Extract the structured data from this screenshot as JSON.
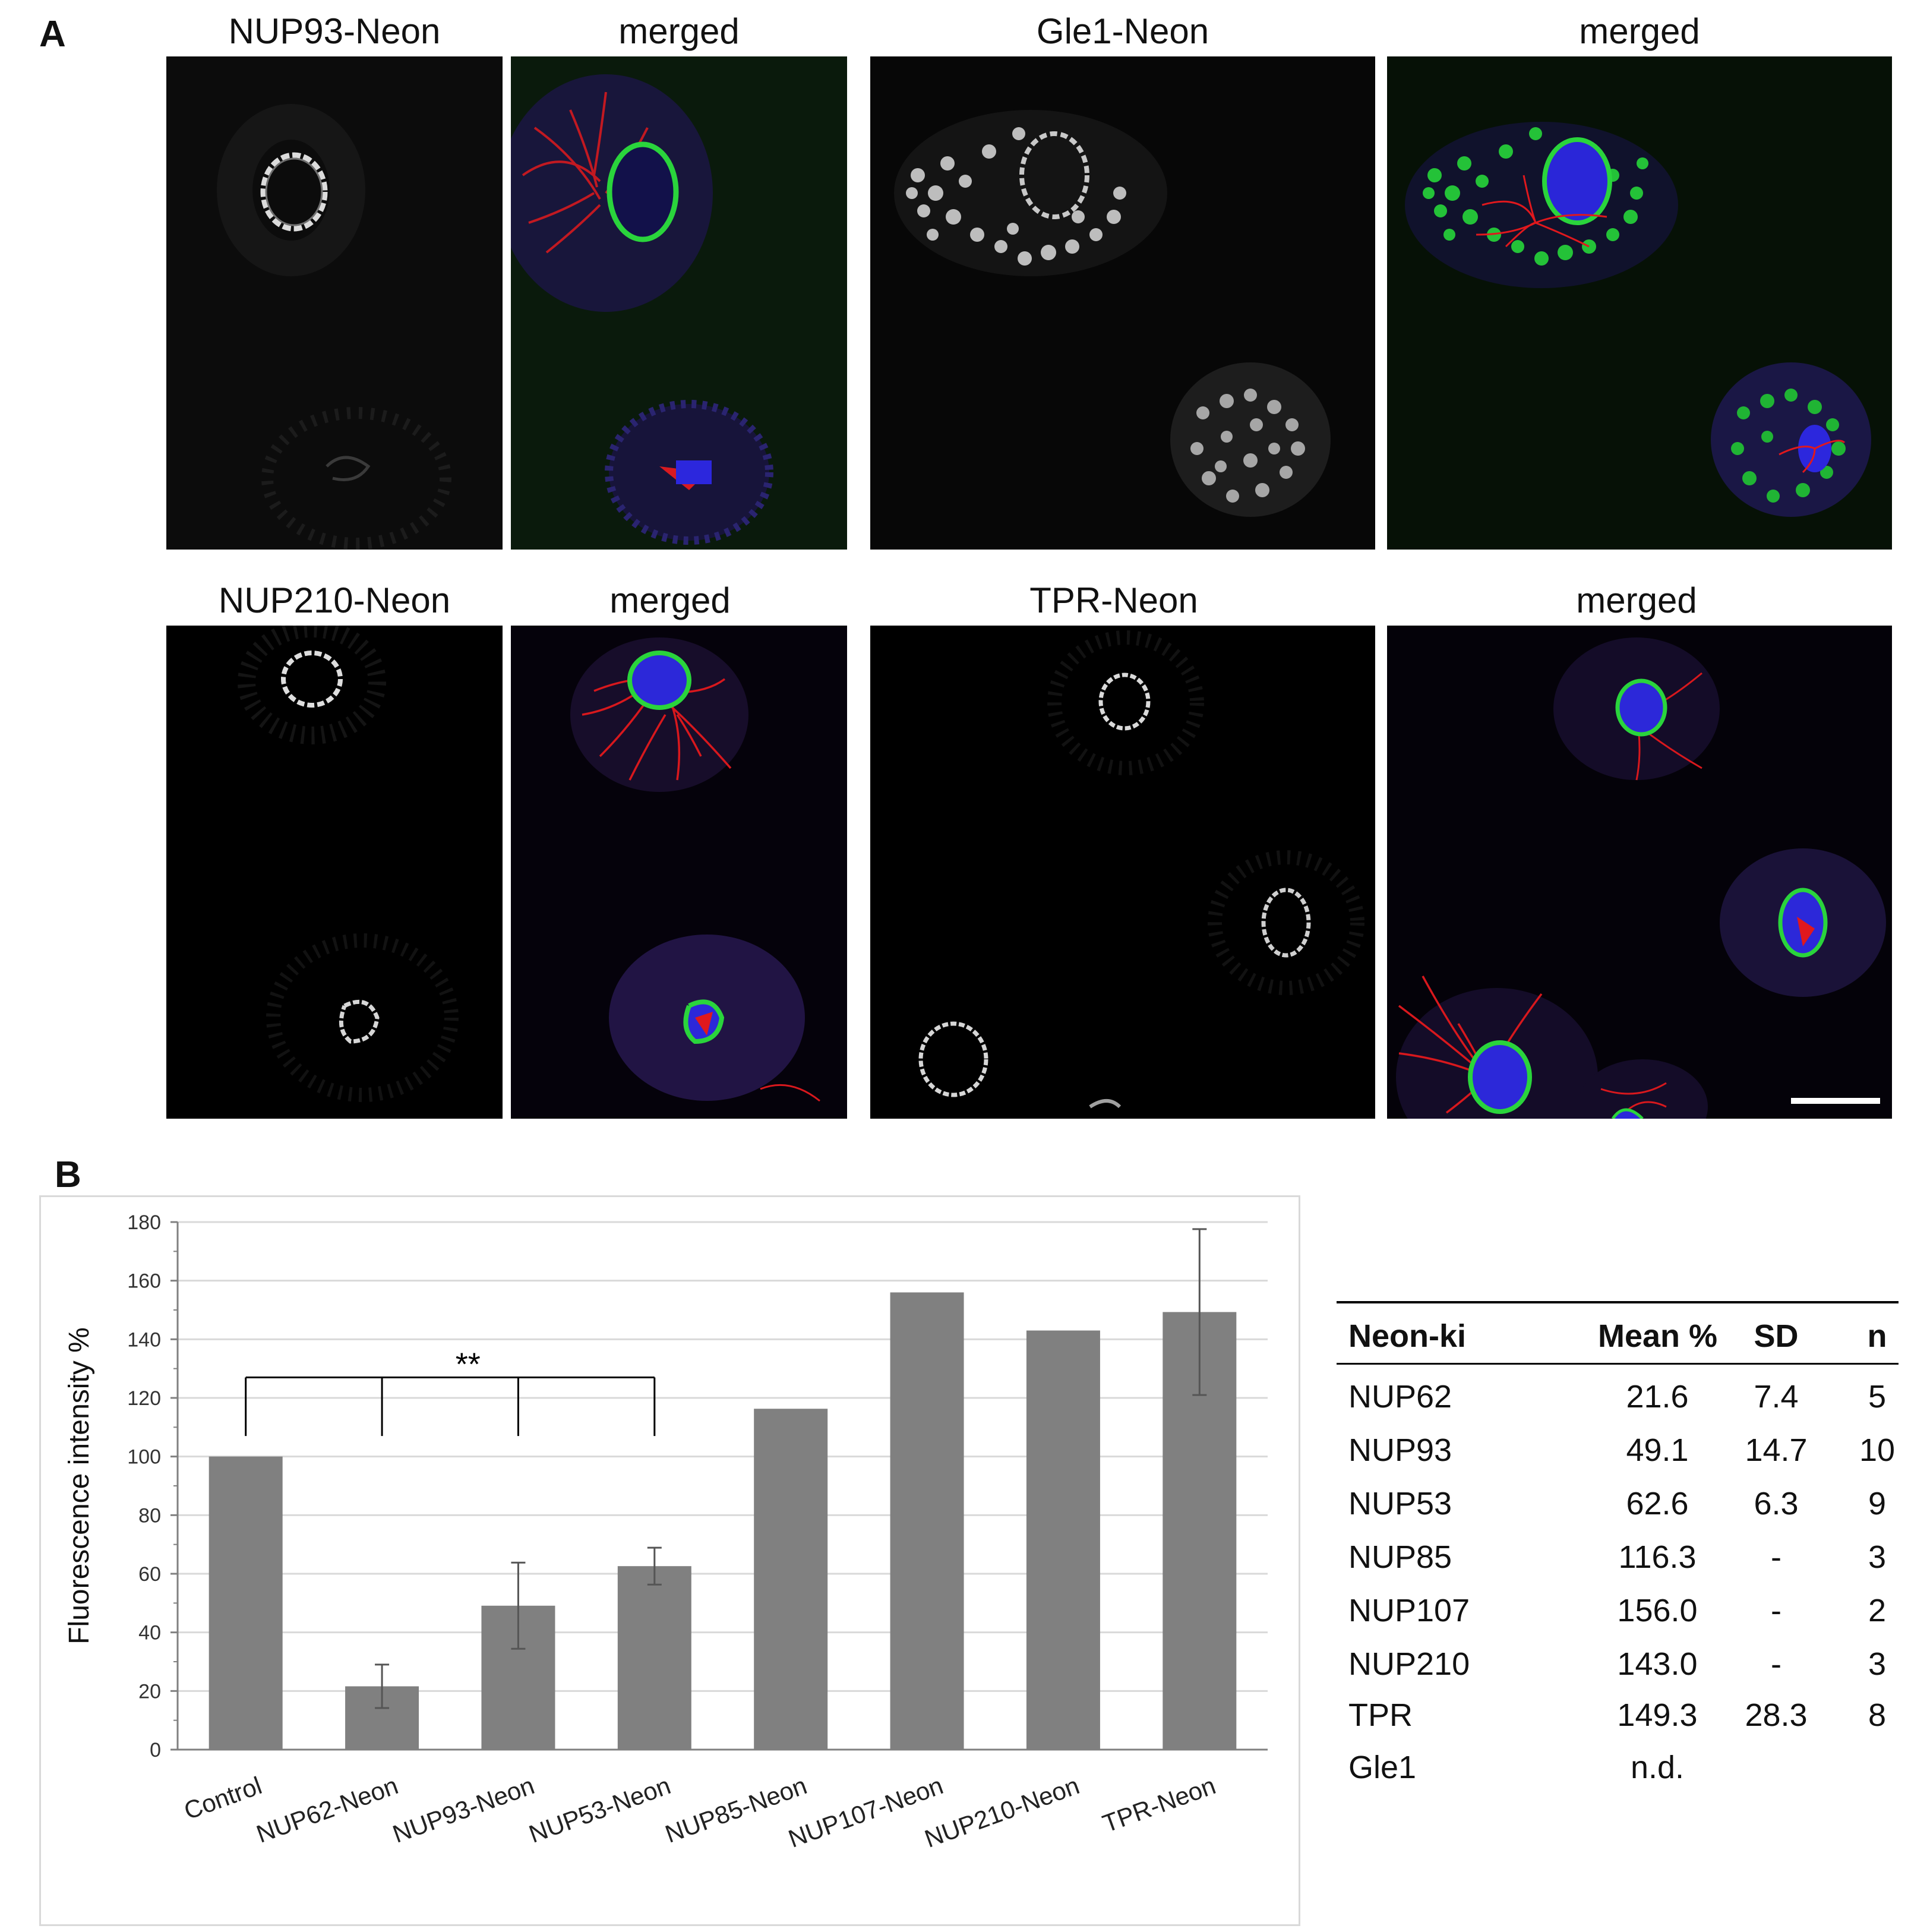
{
  "panel_a": {
    "letter": "A",
    "top_row_titles": [
      "NUP93-Neon",
      "merged",
      "Gle1-Neon",
      "merged"
    ],
    "bottom_row_titles": [
      "NUP210-Neon",
      "merged",
      "TPR-Neon",
      "merged"
    ],
    "channel_colors": {
      "gray": "#e6e6e6",
      "green": "#27d23a",
      "red": "#e6161c",
      "blue": "#2a26d8"
    }
  },
  "panel_b": {
    "letter": "B",
    "significance": "**"
  },
  "chart_data": {
    "type": "bar",
    "categories": [
      "Control",
      "NUP62-Neon",
      "NUP93-Neon",
      "NUP53-Neon",
      "NUP85-Neon",
      "NUP107-Neon",
      "NUP210-Neon",
      "TPR-Neon"
    ],
    "values": [
      100,
      21.6,
      49.1,
      62.6,
      116.3,
      156.0,
      143.0,
      149.3
    ],
    "errors": [
      null,
      7.4,
      14.7,
      6.3,
      null,
      null,
      null,
      28.3
    ],
    "ylabel": "Fluorescence intensity  %",
    "ylim": [
      0,
      180
    ],
    "yticks": [
      "0",
      "20",
      "40",
      "60",
      "80",
      "100",
      "120",
      "140",
      "160",
      "180"
    ],
    "bar_color": "#808080",
    "grid": true
  },
  "table": {
    "headers": [
      "Neon-ki",
      "Mean %",
      "SD",
      "n"
    ],
    "rows": [
      [
        "NUP62",
        "21.6",
        "7.4",
        "5"
      ],
      [
        "NUP93",
        "49.1",
        "14.7",
        "10"
      ],
      [
        "NUP53",
        "62.6",
        "6.3",
        "9"
      ],
      [
        "NUP85",
        "116.3",
        "-",
        "3"
      ],
      [
        "NUP107",
        "156.0",
        "-",
        "2"
      ],
      [
        "NUP210",
        "143.0",
        "-",
        "3"
      ],
      [
        "TPR",
        "149.3",
        "28.3",
        "8"
      ],
      [
        "Gle1",
        "n.d.",
        "",
        ""
      ]
    ]
  }
}
